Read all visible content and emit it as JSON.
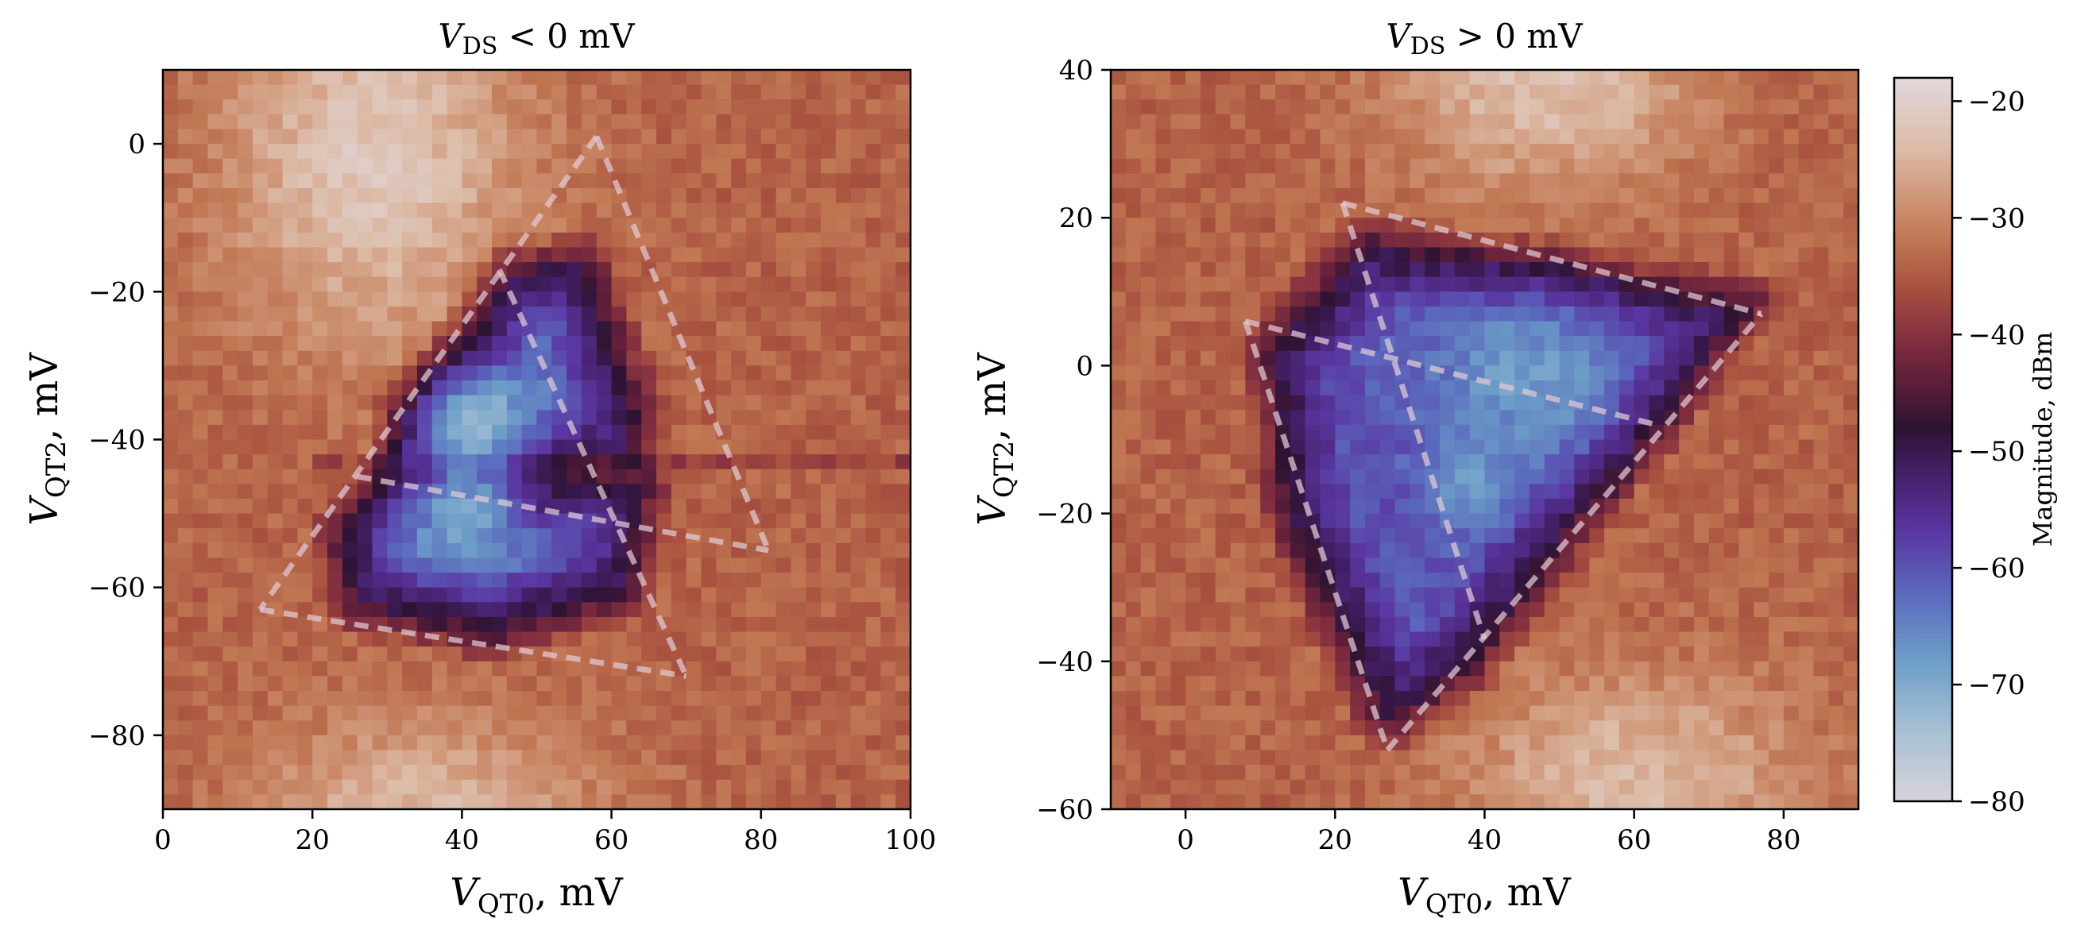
{
  "chart_data": [
    {
      "type": "heatmap",
      "title": {
        "main": "V",
        "sub": "DS",
        "rest": " < 0 mV"
      },
      "xlabel": {
        "main": "V",
        "sub": "QT0",
        "rest": ", mV"
      },
      "ylabel": {
        "main": "V",
        "sub": "QT2",
        "rest": ", mV"
      },
      "xlim": [
        0,
        100
      ],
      "ylim": [
        -90,
        10
      ],
      "xticks": [
        0,
        20,
        40,
        60,
        80,
        100
      ],
      "yticks": [
        -80,
        -60,
        -40,
        -20,
        0
      ],
      "xticklabels": [
        "0",
        "20",
        "40",
        "60",
        "80",
        "100"
      ],
      "yticklabels": [
        "−80",
        "−60",
        "−40",
        "−20",
        "0"
      ],
      "grid_size": 50,
      "background": {
        "base": -34,
        "bright_blobs": [
          {
            "x": 28,
            "y": -2,
            "sx": 14,
            "sy": 18,
            "amp": 12
          },
          {
            "x": 35,
            "y": -92,
            "sx": 16,
            "sy": 10,
            "amp": 10
          }
        ],
        "horizontal_line": {
          "y": -43.5,
          "amp": -4
        }
      },
      "dark_regions": [
        {
          "polygon": [
            [
              46,
              -18
            ],
            [
              56,
              -16
            ],
            [
              63,
              -36
            ],
            [
              62,
              -42
            ],
            [
              32,
              -42
            ]
          ],
          "edge": -48,
          "core": -62
        },
        {
          "polygon": [
            [
              24,
              -52
            ],
            [
              30,
              -46
            ],
            [
              64,
              -46
            ],
            [
              62,
              -60
            ],
            [
              44,
              -66
            ],
            [
              26,
              -62
            ]
          ],
          "edge": -48,
          "core": -62
        }
      ],
      "bright_spots": [
        {
          "x": 42,
          "y": -38,
          "sx": 6,
          "sy": 5,
          "value": -72
        },
        {
          "x": 40,
          "y": -50,
          "sx": 5,
          "sy": 5,
          "value": -70
        }
      ],
      "dashed_lines": [
        [
          [
            58,
            1
          ],
          [
            81,
            -55
          ]
        ],
        [
          [
            58,
            1
          ],
          [
            13,
            -63
          ]
        ],
        [
          [
            13,
            -63
          ],
          [
            70,
            -72
          ]
        ],
        [
          [
            45,
            -17
          ],
          [
            70,
            -72
          ]
        ],
        [
          [
            26,
            -45
          ],
          [
            81,
            -55
          ]
        ]
      ]
    },
    {
      "type": "heatmap",
      "title": {
        "main": "V",
        "sub": "DS",
        "rest": " > 0 mV"
      },
      "xlabel": {
        "main": "V",
        "sub": "QT0",
        "rest": ", mV"
      },
      "ylabel": {
        "main": "V",
        "sub": "QT2",
        "rest": ", mV"
      },
      "xlim": [
        -10,
        90
      ],
      "ylim": [
        -60,
        40
      ],
      "xticks": [
        0,
        20,
        40,
        60,
        80
      ],
      "yticks": [
        -60,
        -40,
        -20,
        0,
        20,
        40
      ],
      "xticklabels": [
        "0",
        "20",
        "40",
        "60",
        "80"
      ],
      "yticklabels": [
        "−60",
        "−40",
        "−20",
        "0",
        "20",
        "40"
      ],
      "grid_size": 50,
      "background": {
        "base": -34,
        "bright_blobs": [
          {
            "x": 48,
            "y": 38,
            "sx": 14,
            "sy": 10,
            "amp": 11
          },
          {
            "x": 60,
            "y": -56,
            "sx": 16,
            "sy": 10,
            "amp": 10
          }
        ],
        "horizontal_line": null
      },
      "dark_regions": [
        {
          "polygon": [
            [
              24,
              16
            ],
            [
              75,
              8
            ],
            [
              60,
              -10
            ],
            [
              38,
              -40
            ],
            [
              27,
              -48
            ],
            [
              14,
              -20
            ],
            [
              12,
              2
            ]
          ],
          "edge": -48,
          "core": -60
        }
      ],
      "bright_spots": [
        {
          "x": 46,
          "y": -2,
          "sx": 9,
          "sy": 8,
          "value": -68
        },
        {
          "x": 38,
          "y": -16,
          "sx": 4,
          "sy": 4,
          "value": -68
        }
      ],
      "dashed_lines": [
        [
          [
            21,
            22
          ],
          [
            77,
            7
          ]
        ],
        [
          [
            21,
            22
          ],
          [
            40,
            -37
          ]
        ],
        [
          [
            8,
            6
          ],
          [
            27,
            -52
          ]
        ],
        [
          [
            27,
            -52
          ],
          [
            77,
            7
          ]
        ],
        [
          [
            8,
            6
          ],
          [
            63,
            -8
          ]
        ]
      ]
    }
  ],
  "colorbar": {
    "label": "Magnitude, dBm",
    "range": [
      -80,
      -18
    ],
    "ticks": [
      -20,
      -30,
      -40,
      -50,
      -60,
      -70,
      -80
    ],
    "ticklabels": [
      "−20",
      "−30",
      "−40",
      "−50",
      "−60",
      "−70",
      "−80"
    ],
    "colormap": "twilight_shifted",
    "stops": [
      {
        "v": -80,
        "color": "#d8d2dc"
      },
      {
        "v": -74,
        "color": "#a8c0d4"
      },
      {
        "v": -68,
        "color": "#6c9ec8"
      },
      {
        "v": -62,
        "color": "#5a67bc"
      },
      {
        "v": -57,
        "color": "#5a37a2"
      },
      {
        "v": -52,
        "color": "#45206a"
      },
      {
        "v": -48,
        "color": "#2d1332"
      },
      {
        "v": -44,
        "color": "#5e1e3a"
      },
      {
        "v": -40,
        "color": "#86313f"
      },
      {
        "v": -36,
        "color": "#a8513f"
      },
      {
        "v": -32,
        "color": "#c07652"
      },
      {
        "v": -28,
        "color": "#d0987a"
      },
      {
        "v": -24,
        "color": "#dcbca8"
      },
      {
        "v": -18,
        "color": "#e2d8dc"
      }
    ]
  }
}
